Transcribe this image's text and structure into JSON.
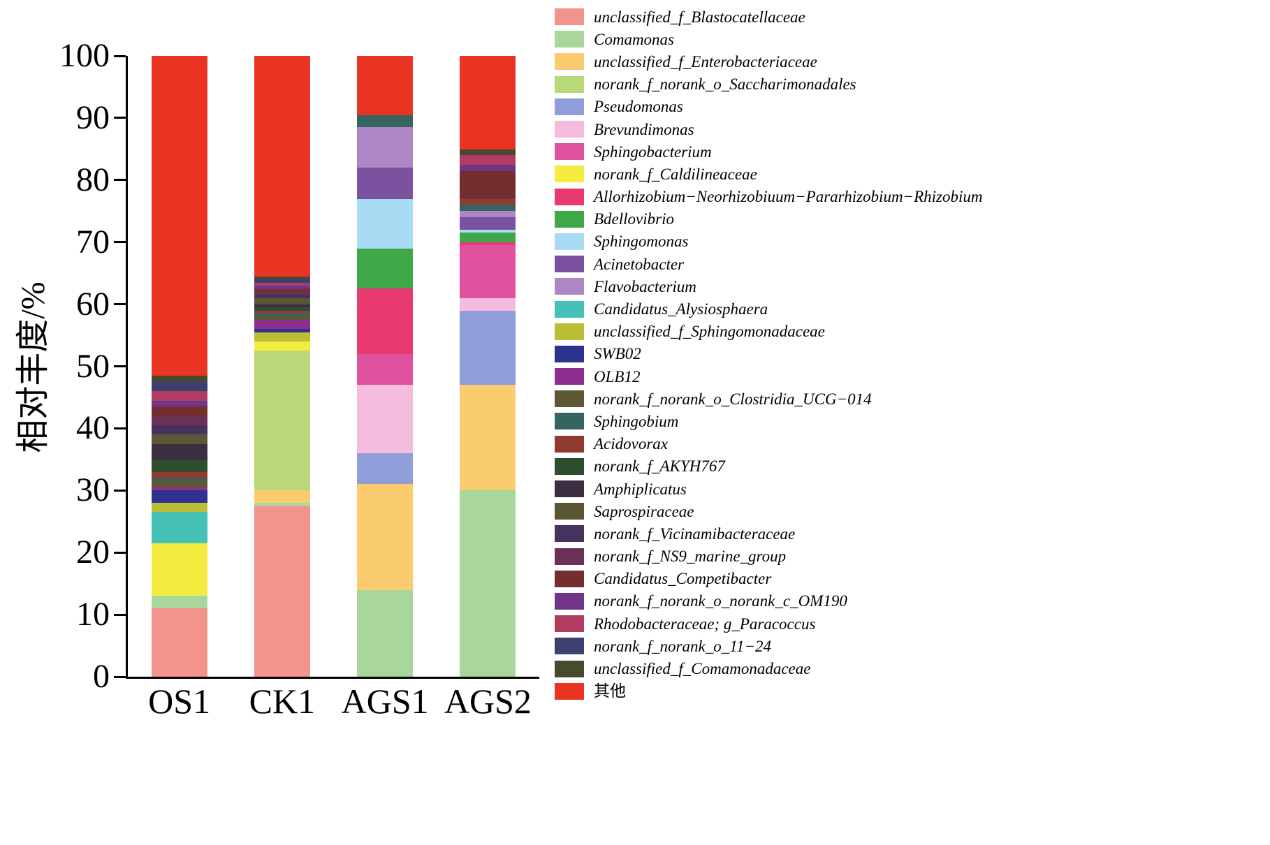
{
  "chart_data": {
    "type": "bar",
    "subtype": "stacked_percent",
    "title": "",
    "ylabel": "相对丰度/%",
    "xlabel": "",
    "ylim": [
      0,
      100
    ],
    "yticks": [
      0,
      10,
      20,
      30,
      40,
      50,
      60,
      70,
      80,
      90,
      100
    ],
    "grid": false,
    "legend_position": "right",
    "categories": [
      "OS1",
      "CK1",
      "AGS1",
      "AGS2"
    ],
    "series": [
      {
        "name": "unclassified_f_Blastocatellaceae",
        "color": "#F2938C",
        "values": [
          11,
          27.5,
          0,
          0
        ]
      },
      {
        "name": "Comamonas",
        "color": "#A8D69B",
        "values": [
          2,
          0.5,
          14,
          30
        ]
      },
      {
        "name": "unclassified_f_Enterobacteriaceae",
        "color": "#FBCB70",
        "values": [
          0,
          2,
          17,
          17
        ]
      },
      {
        "name": "norank_f_norank_o_Saccharimonadales",
        "color": "#B9D878",
        "values": [
          0,
          22.5,
          0,
          0
        ]
      },
      {
        "name": "Pseudomonas",
        "color": "#8F9ED8",
        "values": [
          0,
          0,
          5,
          12
        ]
      },
      {
        "name": "Brevundimonas",
        "color": "#F5BCDD",
        "values": [
          0,
          0,
          11,
          2
        ]
      },
      {
        "name": "Sphingobacterium",
        "color": "#E0529E",
        "values": [
          0,
          0,
          5,
          8.5
        ]
      },
      {
        "name": "norank_f_Caldilineaceae",
        "color": "#F4EC40",
        "values": [
          8.5,
          1.5,
          0,
          0
        ]
      },
      {
        "name": "Allorhizobium−Neorhizobiuum−Pararhizobium−Rhizobium",
        "color": "#E73A6E",
        "values": [
          0,
          0,
          10.5,
          0.5
        ]
      },
      {
        "name": "Bdellovibrio",
        "color": "#3EA848",
        "values": [
          0,
          0,
          6.5,
          1.5
        ]
      },
      {
        "name": "Sphingomonas",
        "color": "#A9DBF5",
        "values": [
          0,
          0,
          8,
          0.5
        ]
      },
      {
        "name": "Acinetobacter",
        "color": "#7B52A0",
        "values": [
          0,
          0,
          5,
          2
        ]
      },
      {
        "name": "Flavobacterium",
        "color": "#AD87C5",
        "values": [
          0,
          0,
          6.5,
          1
        ]
      },
      {
        "name": "Candidatus_Alysiosphaera",
        "color": "#45C1B8",
        "values": [
          5,
          0,
          0,
          0
        ]
      },
      {
        "name": "unclassified_f_Sphingomonadaceae",
        "color": "#BCBE35",
        "values": [
          1.5,
          1.5,
          0,
          0
        ]
      },
      {
        "name": "SWB02",
        "color": "#2F3390",
        "values": [
          2,
          0.5,
          0,
          0
        ]
      },
      {
        "name": "OLB12",
        "color": "#902E90",
        "values": [
          0.5,
          1.5,
          0,
          0
        ]
      },
      {
        "name": "norank_f_norank_o_Clostridia_UCG−014",
        "color": "#5E5734",
        "values": [
          1,
          0.5,
          0,
          0
        ]
      },
      {
        "name": "Sphingobium",
        "color": "#366461",
        "values": [
          0.5,
          0.5,
          2,
          1
        ]
      },
      {
        "name": "Acidovorax",
        "color": "#8F3B30",
        "values": [
          1,
          0.5,
          0,
          1
        ]
      },
      {
        "name": "norank_f_AKYH767",
        "color": "#2F4D2F",
        "values": [
          2,
          0.5,
          0,
          0
        ]
      },
      {
        "name": "Amphiplicatus",
        "color": "#3A2F40",
        "values": [
          2.5,
          0.5,
          0,
          0
        ]
      },
      {
        "name": "Saprospiraceae",
        "color": "#5B5633",
        "values": [
          1.5,
          1,
          0,
          0
        ]
      },
      {
        "name": "norank_f_Vicinamibacteraceae",
        "color": "#47315E",
        "values": [
          1.5,
          0.5,
          0,
          0
        ]
      },
      {
        "name": "norank_f_NS9_marine_group",
        "color": "#6C2F58",
        "values": [
          1.5,
          0.5,
          0,
          0
        ]
      },
      {
        "name": "Candidatus_Competibacter",
        "color": "#742E2D",
        "values": [
          1.5,
          0.5,
          0,
          4.5
        ]
      },
      {
        "name": "norank_f_norank_o_norank_c_OM190",
        "color": "#70358A",
        "values": [
          1,
          0.5,
          0,
          1
        ]
      },
      {
        "name": "Rhodobacteraceae; g_Paracoccus",
        "color": "#B23B62",
        "values": [
          1.5,
          0.5,
          0,
          1.5
        ]
      },
      {
        "name": "norank_f_norank_o_11−24",
        "color": "#3D3F70",
        "values": [
          1.5,
          0.5,
          0,
          0
        ]
      },
      {
        "name": "unclassified_f_Comamonadaceae",
        "color": "#474A2F",
        "values": [
          1,
          0.5,
          0,
          1
        ]
      },
      {
        "name": "其他",
        "color": "#E93323",
        "values": [
          51.5,
          35.5,
          9.5,
          15
        ]
      }
    ]
  }
}
